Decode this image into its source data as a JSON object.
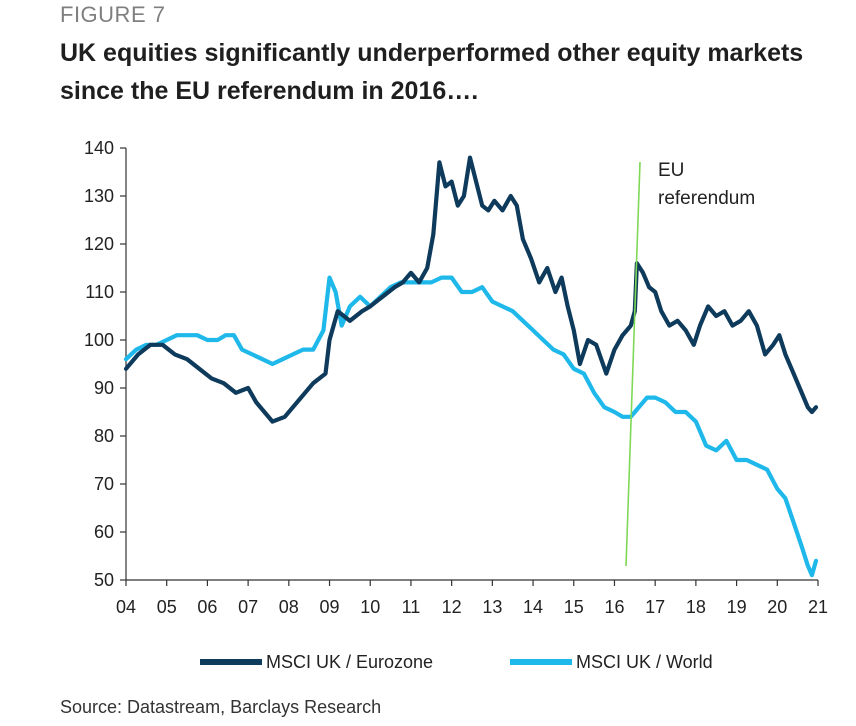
{
  "figure_label": "FIGURE 7",
  "source": "Source: Datastream, Barclays Research",
  "chart_data": {
    "type": "line",
    "title": "UK equities significantly underperformed other equity markets since the EU referendum in 2016….",
    "xlabel": "",
    "ylabel": "",
    "xlim": [
      2004,
      2021
    ],
    "ylim": [
      50,
      140
    ],
    "y_ticks": [
      "50",
      "60",
      "70",
      "80",
      "90",
      "100",
      "110",
      "120",
      "130",
      "140"
    ],
    "x_ticks": [
      "04",
      "05",
      "06",
      "07",
      "08",
      "09",
      "10",
      "11",
      "12",
      "13",
      "14",
      "15",
      "16",
      "17",
      "18",
      "19",
      "20",
      "21"
    ],
    "legend_position": "bottom",
    "grid": false,
    "annotation": {
      "lines": [
        "EU",
        "referendum"
      ],
      "x": 2016.48,
      "color": "#7ed957"
    },
    "series": [
      {
        "name": "MSCI UK / Eurozone",
        "color": "#0e3a5c",
        "points": [
          [
            2004.0,
            94
          ],
          [
            2004.3,
            97
          ],
          [
            2004.6,
            99
          ],
          [
            2004.9,
            99
          ],
          [
            2005.2,
            97
          ],
          [
            2005.5,
            96
          ],
          [
            2005.8,
            94
          ],
          [
            2006.1,
            92
          ],
          [
            2006.4,
            91
          ],
          [
            2006.7,
            89
          ],
          [
            2007.0,
            90
          ],
          [
            2007.2,
            87
          ],
          [
            2007.4,
            85
          ],
          [
            2007.6,
            83
          ],
          [
            2007.9,
            84
          ],
          [
            2008.1,
            86
          ],
          [
            2008.3,
            88
          ],
          [
            2008.6,
            91
          ],
          [
            2008.9,
            93
          ],
          [
            2009.0,
            100
          ],
          [
            2009.2,
            106
          ],
          [
            2009.5,
            104
          ],
          [
            2009.8,
            106
          ],
          [
            2010.0,
            107
          ],
          [
            2010.3,
            109
          ],
          [
            2010.6,
            111
          ],
          [
            2010.8,
            112
          ],
          [
            2011.0,
            114
          ],
          [
            2011.2,
            112
          ],
          [
            2011.4,
            115
          ],
          [
            2011.55,
            122
          ],
          [
            2011.7,
            137
          ],
          [
            2011.85,
            132
          ],
          [
            2012.0,
            133
          ],
          [
            2012.15,
            128
          ],
          [
            2012.3,
            130
          ],
          [
            2012.45,
            138
          ],
          [
            2012.6,
            133
          ],
          [
            2012.75,
            128
          ],
          [
            2012.9,
            127
          ],
          [
            2013.05,
            129
          ],
          [
            2013.25,
            127
          ],
          [
            2013.45,
            130
          ],
          [
            2013.6,
            128
          ],
          [
            2013.75,
            121
          ],
          [
            2013.95,
            117
          ],
          [
            2014.15,
            112
          ],
          [
            2014.35,
            115
          ],
          [
            2014.55,
            110
          ],
          [
            2014.7,
            113
          ],
          [
            2014.85,
            107
          ],
          [
            2015.0,
            102
          ],
          [
            2015.15,
            95
          ],
          [
            2015.35,
            100
          ],
          [
            2015.55,
            99
          ],
          [
            2015.8,
            93
          ],
          [
            2016.0,
            98
          ],
          [
            2016.2,
            101
          ],
          [
            2016.4,
            103
          ],
          [
            2016.5,
            106
          ],
          [
            2016.55,
            116
          ],
          [
            2016.7,
            114
          ],
          [
            2016.85,
            111
          ],
          [
            2017.0,
            110
          ],
          [
            2017.15,
            106
          ],
          [
            2017.35,
            103
          ],
          [
            2017.55,
            104
          ],
          [
            2017.75,
            102
          ],
          [
            2017.95,
            99
          ],
          [
            2018.1,
            103
          ],
          [
            2018.3,
            107
          ],
          [
            2018.5,
            105
          ],
          [
            2018.7,
            106
          ],
          [
            2018.9,
            103
          ],
          [
            2019.1,
            104
          ],
          [
            2019.3,
            106
          ],
          [
            2019.5,
            103
          ],
          [
            2019.7,
            97
          ],
          [
            2019.9,
            99
          ],
          [
            2020.05,
            101
          ],
          [
            2020.2,
            97
          ],
          [
            2020.4,
            93
          ],
          [
            2020.55,
            90
          ],
          [
            2020.75,
            86
          ],
          [
            2020.85,
            85
          ],
          [
            2020.95,
            86
          ]
        ]
      },
      {
        "name": "MSCI UK / World",
        "color": "#1fb8ea",
        "points": [
          [
            2004.0,
            96
          ],
          [
            2004.25,
            98
          ],
          [
            2004.5,
            99
          ],
          [
            2004.75,
            99
          ],
          [
            2005.0,
            100
          ],
          [
            2005.25,
            101
          ],
          [
            2005.5,
            101
          ],
          [
            2005.75,
            101
          ],
          [
            2006.0,
            100
          ],
          [
            2006.25,
            100
          ],
          [
            2006.45,
            101
          ],
          [
            2006.65,
            101
          ],
          [
            2006.85,
            98
          ],
          [
            2007.1,
            97
          ],
          [
            2007.35,
            96
          ],
          [
            2007.6,
            95
          ],
          [
            2007.85,
            96
          ],
          [
            2008.1,
            97
          ],
          [
            2008.35,
            98
          ],
          [
            2008.6,
            98
          ],
          [
            2008.85,
            102
          ],
          [
            2009.0,
            113
          ],
          [
            2009.15,
            110
          ],
          [
            2009.3,
            103
          ],
          [
            2009.5,
            107
          ],
          [
            2009.75,
            109
          ],
          [
            2010.0,
            107
          ],
          [
            2010.25,
            109
          ],
          [
            2010.5,
            111
          ],
          [
            2010.75,
            112
          ],
          [
            2011.0,
            112
          ],
          [
            2011.25,
            112
          ],
          [
            2011.5,
            112
          ],
          [
            2011.75,
            113
          ],
          [
            2012.0,
            113
          ],
          [
            2012.25,
            110
          ],
          [
            2012.5,
            110
          ],
          [
            2012.75,
            111
          ],
          [
            2013.0,
            108
          ],
          [
            2013.25,
            107
          ],
          [
            2013.5,
            106
          ],
          [
            2013.75,
            104
          ],
          [
            2014.0,
            102
          ],
          [
            2014.25,
            100
          ],
          [
            2014.5,
            98
          ],
          [
            2014.75,
            97
          ],
          [
            2015.0,
            94
          ],
          [
            2015.25,
            93
          ],
          [
            2015.5,
            89
          ],
          [
            2015.75,
            86
          ],
          [
            2016.0,
            85
          ],
          [
            2016.2,
            84
          ],
          [
            2016.4,
            84
          ],
          [
            2016.6,
            86
          ],
          [
            2016.8,
            88
          ],
          [
            2017.0,
            88
          ],
          [
            2017.25,
            87
          ],
          [
            2017.5,
            85
          ],
          [
            2017.75,
            85
          ],
          [
            2018.0,
            83
          ],
          [
            2018.25,
            78
          ],
          [
            2018.5,
            77
          ],
          [
            2018.75,
            79
          ],
          [
            2019.0,
            75
          ],
          [
            2019.25,
            75
          ],
          [
            2019.5,
            74
          ],
          [
            2019.75,
            73
          ],
          [
            2020.0,
            69
          ],
          [
            2020.2,
            67
          ],
          [
            2020.4,
            62
          ],
          [
            2020.6,
            57
          ],
          [
            2020.75,
            53
          ],
          [
            2020.85,
            51
          ],
          [
            2020.95,
            54
          ]
        ]
      }
    ]
  }
}
